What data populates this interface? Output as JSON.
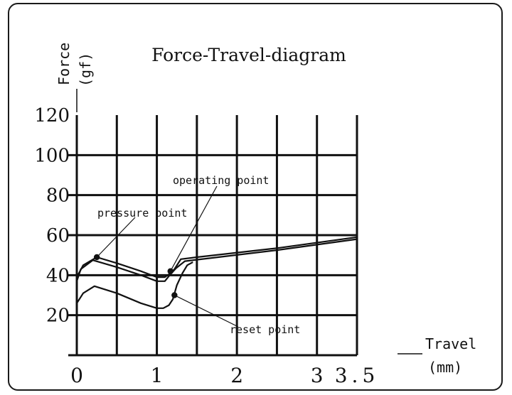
{
  "chart_data": {
    "type": "line",
    "title": "Force-Travel-diagram",
    "ylabel": "Force",
    "ylabel_unit": "(gf)",
    "xlabel": "Travel",
    "xlabel_unit": "(mm)",
    "xlim": [
      0,
      3.5
    ],
    "ylim": [
      0,
      120
    ],
    "xticks": [
      0,
      1,
      2,
      3,
      3.5
    ],
    "xtick_labels": [
      "0",
      "1",
      "2",
      "3",
      "3.5"
    ],
    "yticks": [
      20,
      40,
      60,
      80,
      100,
      120
    ],
    "ytick_labels": [
      "20",
      "40",
      "60",
      "80",
      "100",
      "120"
    ],
    "grid": true,
    "series": [
      {
        "points": [
          [
            0.0,
            39
          ],
          [
            0.08,
            45
          ],
          [
            0.25,
            49
          ],
          [
            0.5,
            46
          ],
          [
            0.8,
            42
          ],
          [
            1.0,
            39
          ],
          [
            1.1,
            39
          ],
          [
            1.17,
            41
          ],
          [
            1.22,
            43
          ],
          [
            1.3,
            48
          ],
          [
            1.5,
            49
          ],
          [
            2.5,
            53.5
          ],
          [
            3.5,
            59
          ]
        ]
      },
      {
        "points": [
          [
            0.0,
            37
          ],
          [
            0.05,
            43
          ],
          [
            0.2,
            47.5
          ],
          [
            0.5,
            44
          ],
          [
            0.8,
            40
          ],
          [
            1.0,
            37
          ],
          [
            1.1,
            37
          ],
          [
            1.16,
            40
          ],
          [
            1.24,
            43.5
          ],
          [
            1.35,
            47
          ],
          [
            2.5,
            52.5
          ],
          [
            3.5,
            58
          ]
        ]
      },
      {
        "points": [
          [
            0.0,
            26
          ],
          [
            0.08,
            31
          ],
          [
            0.22,
            34.5
          ],
          [
            0.5,
            31
          ],
          [
            0.8,
            26
          ],
          [
            1.0,
            23.5
          ],
          [
            1.08,
            23.5
          ],
          [
            1.15,
            25
          ],
          [
            1.2,
            28
          ],
          [
            1.25,
            35
          ],
          [
            1.32,
            41
          ],
          [
            1.38,
            45
          ],
          [
            1.45,
            46.5
          ]
        ]
      }
    ],
    "annotations": [
      {
        "label": "pressure point",
        "point": [
          0.25,
          49
        ]
      },
      {
        "label": "operating point",
        "point": [
          1.17,
          42
        ]
      },
      {
        "label": "reset point",
        "point": [
          1.22,
          30
        ]
      }
    ]
  }
}
